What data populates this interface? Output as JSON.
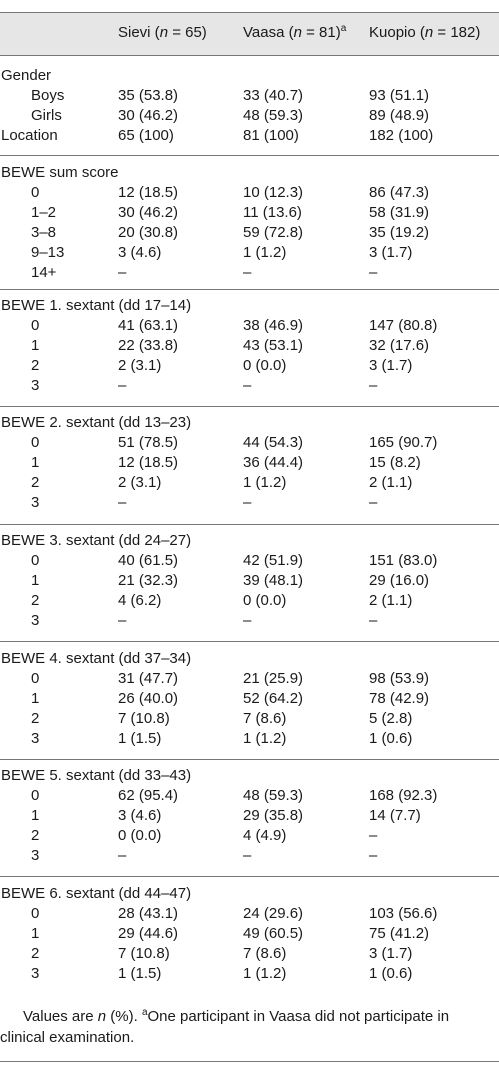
{
  "header": {
    "col1_name": "Sievi",
    "col1_n": "n",
    "col1_count": " = 65)",
    "col2_name": "Vaasa",
    "col2_n": "n",
    "col2_count": " = 81)",
    "col2_sup": "a",
    "col3_name": "Kuopio",
    "col3_n": "n",
    "col3_count": " = 182)"
  },
  "sections": [
    {
      "title": "Gender",
      "rows": [
        {
          "label": "Boys",
          "sievi": "35 (53.8)",
          "vaasa": "33 (40.7)",
          "kuopio": "93 (51.1)"
        },
        {
          "label": "Girls",
          "sievi": "30 (46.2)",
          "vaasa": "48 (59.3)",
          "kuopio": "89 (48.9)"
        }
      ],
      "extra": {
        "label": "Location",
        "sievi": "65 (100)",
        "vaasa": "81 (100)",
        "kuopio": "182 (100)"
      }
    },
    {
      "title": "BEWE sum score",
      "rows": [
        {
          "label": "0",
          "sievi": "12 (18.5)",
          "vaasa": "10 (12.3)",
          "kuopio": "86 (47.3)"
        },
        {
          "label": "1–2",
          "sievi": "30 (46.2)",
          "vaasa": "11 (13.6)",
          "kuopio": "58 (31.9)"
        },
        {
          "label": "3–8",
          "sievi": "20 (30.8)",
          "vaasa": "59 (72.8)",
          "kuopio": "35 (19.2)"
        },
        {
          "label": "9–13",
          "sievi": "3 (4.6)",
          "vaasa": "1 (1.2)",
          "kuopio": "3 (1.7)"
        },
        {
          "label": "14+",
          "sievi": "–",
          "vaasa": "–",
          "kuopio": "–"
        }
      ]
    },
    {
      "title": "BEWE 1. sextant (dd 17–14)",
      "rows": [
        {
          "label": "0",
          "sievi": "41 (63.1)",
          "vaasa": "38 (46.9)",
          "kuopio": "147 (80.8)"
        },
        {
          "label": "1",
          "sievi": "22 (33.8)",
          "vaasa": "43 (53.1)",
          "kuopio": "32 (17.6)"
        },
        {
          "label": "2",
          "sievi": "2 (3.1)",
          "vaasa": "0 (0.0)",
          "kuopio": "3 (1.7)"
        },
        {
          "label": "3",
          "sievi": "–",
          "vaasa": "–",
          "kuopio": "–"
        }
      ]
    },
    {
      "title": "BEWE 2. sextant (dd 13–23)",
      "rows": [
        {
          "label": "0",
          "sievi": "51 (78.5)",
          "vaasa": "44 (54.3)",
          "kuopio": "165 (90.7)"
        },
        {
          "label": "1",
          "sievi": "12 (18.5)",
          "vaasa": "36 (44.4)",
          "kuopio": "15 (8.2)"
        },
        {
          "label": "2",
          "sievi": "2 (3.1)",
          "vaasa": "1 (1.2)",
          "kuopio": "2 (1.1)"
        },
        {
          "label": "3",
          "sievi": "–",
          "vaasa": "–",
          "kuopio": "–"
        }
      ]
    },
    {
      "title": "BEWE 3. sextant (dd 24–27)",
      "rows": [
        {
          "label": "0",
          "sievi": "40 (61.5)",
          "vaasa": "42 (51.9)",
          "kuopio": "151 (83.0)"
        },
        {
          "label": "1",
          "sievi": "21 (32.3)",
          "vaasa": "39 (48.1)",
          "kuopio": "29 (16.0)"
        },
        {
          "label": "2",
          "sievi": "4 (6.2)",
          "vaasa": "0 (0.0)",
          "kuopio": "2 (1.1)"
        },
        {
          "label": "3",
          "sievi": "–",
          "vaasa": "–",
          "kuopio": "–"
        }
      ]
    },
    {
      "title": "BEWE 4. sextant (dd 37–34)",
      "rows": [
        {
          "label": "0",
          "sievi": "31 (47.7)",
          "vaasa": "21 (25.9)",
          "kuopio": "98 (53.9)"
        },
        {
          "label": "1",
          "sievi": "26 (40.0)",
          "vaasa": "52 (64.2)",
          "kuopio": "78 (42.9)"
        },
        {
          "label": "2",
          "sievi": "7 (10.8)",
          "vaasa": "7 (8.6)",
          "kuopio": "5 (2.8)"
        },
        {
          "label": "3",
          "sievi": "1 (1.5)",
          "vaasa": "1 (1.2)",
          "kuopio": "1 (0.6)"
        }
      ]
    },
    {
      "title": "BEWE 5. sextant (dd 33–43)",
      "rows": [
        {
          "label": "0",
          "sievi": "62 (95.4)",
          "vaasa": "48 (59.3)",
          "kuopio": "168 (92.3)"
        },
        {
          "label": "1",
          "sievi": "3 (4.6)",
          "vaasa": "29 (35.8)",
          "kuopio": "14 (7.7)"
        },
        {
          "label": "2",
          "sievi": "0 (0.0)",
          "vaasa": "4 (4.9)",
          "kuopio": "–"
        },
        {
          "label": "3",
          "sievi": "–",
          "vaasa": "–",
          "kuopio": "–"
        }
      ]
    },
    {
      "title": "BEWE 6. sextant (dd 44–47)",
      "rows": [
        {
          "label": "0",
          "sievi": "28 (43.1)",
          "vaasa": "24 (29.6)",
          "kuopio": "103 (56.6)"
        },
        {
          "label": "1",
          "sievi": "29 (44.6)",
          "vaasa": "49 (60.5)",
          "kuopio": "75 (41.2)"
        },
        {
          "label": "2",
          "sievi": "7 (10.8)",
          "vaasa": "7 (8.6)",
          "kuopio": "3 (1.7)"
        },
        {
          "label": "3",
          "sievi": "1 (1.5)",
          "vaasa": "1 (1.2)",
          "kuopio": "1 (0.6)"
        }
      ]
    }
  ],
  "footnote": {
    "text1": "Values are ",
    "n": "n",
    "text2": " (%). ",
    "sup": "a",
    "text3": "One participant in Vaasa did not participate in",
    "text4": "clinical examination."
  }
}
